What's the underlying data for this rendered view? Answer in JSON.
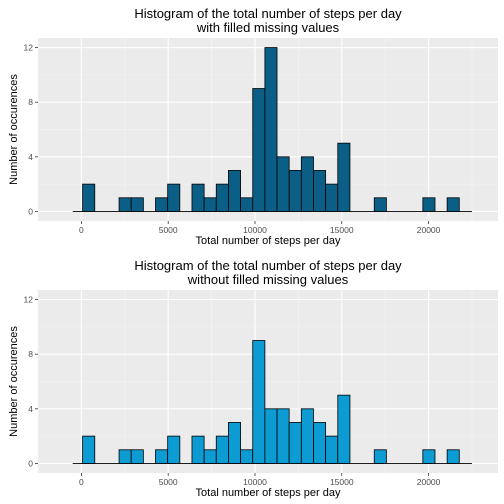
{
  "chart_data": [
    {
      "type": "bar",
      "title_line1": "Histogram of the total number of steps per day",
      "title_line2": "with filled missing values",
      "xlabel": "Total number of steps per day",
      "ylabel": "Number of occurences",
      "xlim": [
        -2500,
        24000
      ],
      "ylim": [
        -0.7,
        12.7
      ],
      "x_ticks": [
        0,
        5000,
        10000,
        15000,
        20000
      ],
      "x_tick_labels": [
        "0",
        "5000",
        "10000",
        "15000",
        "20000"
      ],
      "y_ticks": [
        0,
        4,
        8,
        12
      ],
      "y_tick_labels": [
        "0",
        "4",
        "8",
        "12"
      ],
      "bin_width": 700,
      "baseline": [
        -500,
        22500
      ],
      "bars": [
        {
          "x": 420,
          "count": 2
        },
        {
          "x": 2520,
          "count": 1
        },
        {
          "x": 3220,
          "count": 1
        },
        {
          "x": 4620,
          "count": 1
        },
        {
          "x": 5320,
          "count": 2
        },
        {
          "x": 6720,
          "count": 2
        },
        {
          "x": 7420,
          "count": 1
        },
        {
          "x": 8120,
          "count": 2
        },
        {
          "x": 8820,
          "count": 3
        },
        {
          "x": 9520,
          "count": 1
        },
        {
          "x": 10220,
          "count": 9
        },
        {
          "x": 10920,
          "count": 12
        },
        {
          "x": 11620,
          "count": 4
        },
        {
          "x": 12320,
          "count": 3
        },
        {
          "x": 13020,
          "count": 4
        },
        {
          "x": 13720,
          "count": 3
        },
        {
          "x": 14420,
          "count": 2
        },
        {
          "x": 15120,
          "count": 5
        },
        {
          "x": 17220,
          "count": 1
        },
        {
          "x": 20020,
          "count": 1
        },
        {
          "x": 21420,
          "count": 1
        }
      ],
      "fill": "#0b5f86",
      "grid": true
    },
    {
      "type": "bar",
      "title_line1": "Histogram of the total number of steps per day",
      "title_line2": "without filled missing values",
      "xlabel": "Total number of steps per day",
      "ylabel": "Number of occurences",
      "xlim": [
        -2500,
        24000
      ],
      "ylim": [
        -0.7,
        12.7
      ],
      "x_ticks": [
        0,
        5000,
        10000,
        15000,
        20000
      ],
      "x_tick_labels": [
        "0",
        "5000",
        "10000",
        "15000",
        "20000"
      ],
      "y_ticks": [
        0,
        4,
        8,
        12
      ],
      "y_tick_labels": [
        "0",
        "4",
        "8",
        "12"
      ],
      "bin_width": 700,
      "baseline": [
        -500,
        22500
      ],
      "bars": [
        {
          "x": 420,
          "count": 2
        },
        {
          "x": 2520,
          "count": 1
        },
        {
          "x": 3220,
          "count": 1
        },
        {
          "x": 4620,
          "count": 1
        },
        {
          "x": 5320,
          "count": 2
        },
        {
          "x": 6720,
          "count": 2
        },
        {
          "x": 7420,
          "count": 1
        },
        {
          "x": 8120,
          "count": 2
        },
        {
          "x": 8820,
          "count": 3
        },
        {
          "x": 9520,
          "count": 1
        },
        {
          "x": 10220,
          "count": 9
        },
        {
          "x": 10920,
          "count": 4
        },
        {
          "x": 11620,
          "count": 4
        },
        {
          "x": 12320,
          "count": 3
        },
        {
          "x": 13020,
          "count": 4
        },
        {
          "x": 13720,
          "count": 3
        },
        {
          "x": 14420,
          "count": 2
        },
        {
          "x": 15120,
          "count": 5
        },
        {
          "x": 17220,
          "count": 1
        },
        {
          "x": 20020,
          "count": 1
        },
        {
          "x": 21420,
          "count": 1
        }
      ],
      "fill": "#0c9bd2",
      "grid": true
    }
  ],
  "colors": {
    "panel_background": "#ebebeb",
    "grid_major": "#ffffff",
    "grid_minor": "#f5f5f5",
    "bar_outline": "#000000"
  }
}
